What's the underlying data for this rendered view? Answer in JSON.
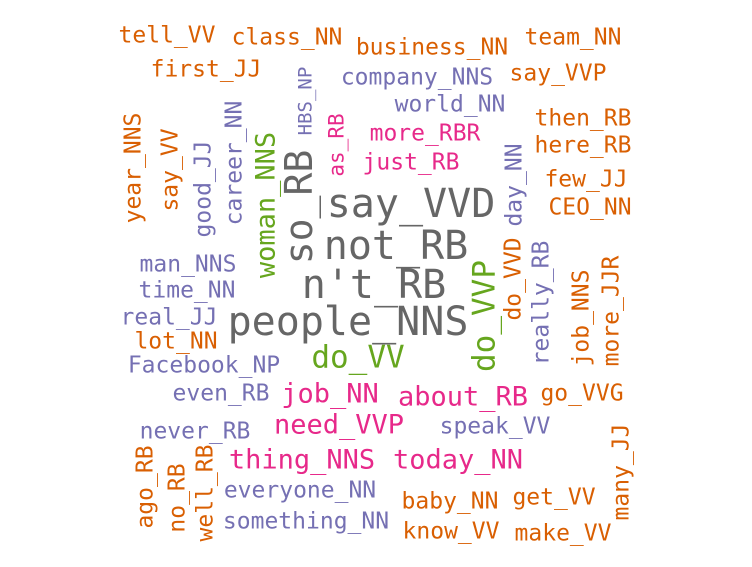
{
  "palette": {
    "orange": "#d95f02",
    "purple": "#7570b3",
    "magenta": "#e7298a",
    "green": "#66a61e",
    "gray": "#666666"
  },
  "words": [
    {
      "text": "tell_VV",
      "color": "orange"
    },
    {
      "text": "class_NN",
      "color": "orange"
    },
    {
      "text": "business_NN",
      "color": "orange"
    },
    {
      "text": "team_NN",
      "color": "orange"
    },
    {
      "text": "first_JJ",
      "color": "orange"
    },
    {
      "text": "HBS_NP",
      "color": "purple"
    },
    {
      "text": "company_NNS",
      "color": "purple"
    },
    {
      "text": "say_VVP",
      "color": "orange"
    },
    {
      "text": "world_NN",
      "color": "purple"
    },
    {
      "text": "year_NNS",
      "color": "orange"
    },
    {
      "text": "say_VV",
      "color": "orange"
    },
    {
      "text": "good_JJ",
      "color": "purple"
    },
    {
      "text": "career_NN",
      "color": "purple"
    },
    {
      "text": "woman_NNS",
      "color": "green"
    },
    {
      "text": "so_RB",
      "color": "gray"
    },
    {
      "text": "as_RB",
      "color": "magenta"
    },
    {
      "text": "more_RBR",
      "color": "magenta"
    },
    {
      "text": "then_RB",
      "color": "orange"
    },
    {
      "text": "just_RB",
      "color": "magenta"
    },
    {
      "text": "here_RB",
      "color": "orange"
    },
    {
      "text": "day_NN",
      "color": "purple"
    },
    {
      "text": "few_JJ",
      "color": "orange"
    },
    {
      "text": "say_VVD",
      "color": "gray"
    },
    {
      "text": "CEO_NN",
      "color": "orange"
    },
    {
      "text": "not_RB",
      "color": "gray"
    },
    {
      "text": "man_NNS",
      "color": "purple"
    },
    {
      "text": "n't_RB",
      "color": "gray"
    },
    {
      "text": "do_VVD",
      "color": "orange"
    },
    {
      "text": "really_RB",
      "color": "purple"
    },
    {
      "text": "time_NN",
      "color": "purple"
    },
    {
      "text": "job_NNS",
      "color": "orange"
    },
    {
      "text": "more_JJR",
      "color": "orange"
    },
    {
      "text": "do_VVP",
      "color": "green"
    },
    {
      "text": "real_JJ",
      "color": "purple"
    },
    {
      "text": "people_NNS",
      "color": "gray"
    },
    {
      "text": "lot_NN",
      "color": "orange"
    },
    {
      "text": "do_VV",
      "color": "green"
    },
    {
      "text": "Facebook_NP",
      "color": "purple"
    },
    {
      "text": "even_RB",
      "color": "purple"
    },
    {
      "text": "job_NN",
      "color": "magenta"
    },
    {
      "text": "about_RB",
      "color": "magenta"
    },
    {
      "text": "go_VVG",
      "color": "orange"
    },
    {
      "text": "need_VVP",
      "color": "magenta"
    },
    {
      "text": "speak_VV",
      "color": "purple"
    },
    {
      "text": "never_RB",
      "color": "purple"
    },
    {
      "text": "many_JJ",
      "color": "orange"
    },
    {
      "text": "ago_RB",
      "color": "orange"
    },
    {
      "text": "no_RB",
      "color": "orange"
    },
    {
      "text": "well_RB",
      "color": "orange"
    },
    {
      "text": "thing_NNS",
      "color": "magenta"
    },
    {
      "text": "today_NN",
      "color": "magenta"
    },
    {
      "text": "everyone_NN",
      "color": "purple"
    },
    {
      "text": "baby_NN",
      "color": "orange"
    },
    {
      "text": "get_VV",
      "color": "orange"
    },
    {
      "text": "something_NN",
      "color": "purple"
    },
    {
      "text": "know_VV",
      "color": "orange"
    },
    {
      "text": "make_VV",
      "color": "orange"
    }
  ]
}
